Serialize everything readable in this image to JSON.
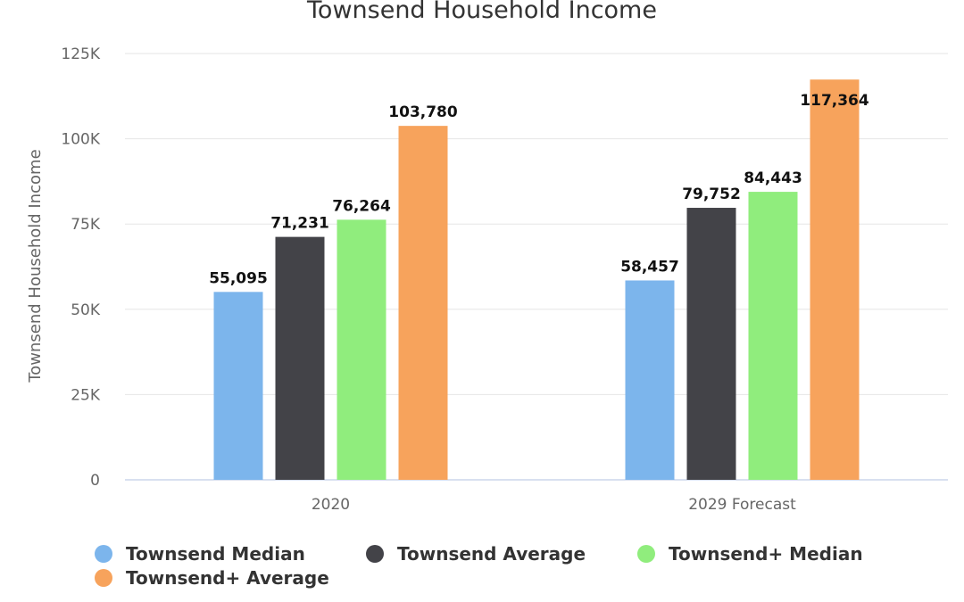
{
  "chart_data": {
    "type": "bar",
    "title": "Townsend Household Income",
    "ylabel": "Townsend Household Income",
    "xlabel": "",
    "categories": [
      "2020",
      "2029 Forecast"
    ],
    "ylim": [
      0,
      125000
    ],
    "yticks": [
      {
        "value": 0,
        "label": "0"
      },
      {
        "value": 25000,
        "label": "25K"
      },
      {
        "value": 50000,
        "label": "50K"
      },
      {
        "value": 75000,
        "label": "75K"
      },
      {
        "value": 100000,
        "label": "100K"
      },
      {
        "value": 125000,
        "label": "125K"
      }
    ],
    "grid": true,
    "legend": "bottom",
    "series": [
      {
        "name": "Townsend Median",
        "color": "#7cb5ec",
        "values": [
          55095,
          58457
        ],
        "labels": [
          "55,095",
          "58,457"
        ]
      },
      {
        "name": "Townsend Average",
        "color": "#434348",
        "values": [
          71231,
          79752
        ],
        "labels": [
          "71,231",
          "79,752"
        ]
      },
      {
        "name": "Townsend+ Median",
        "color": "#90ed7d",
        "values": [
          76264,
          84443
        ],
        "labels": [
          "76,264",
          "84,443"
        ]
      },
      {
        "name": "Townsend+ Average",
        "color": "#f7a35c",
        "values": [
          103780,
          117364
        ],
        "labels": [
          "103,780",
          "117,364"
        ]
      }
    ]
  }
}
